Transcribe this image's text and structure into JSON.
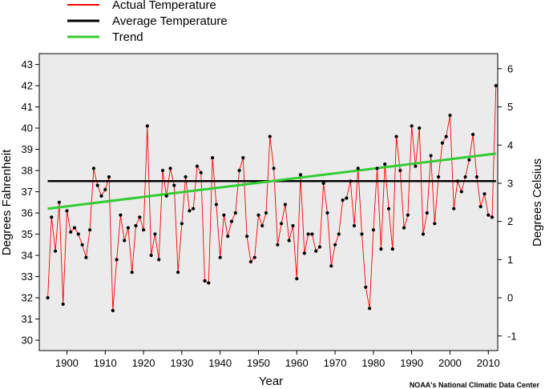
{
  "chart_data": {
    "type": "line",
    "xlabel": "Year",
    "ylabel": "Degrees Fahrenheit",
    "ylabel_right": "Degrees Celsius",
    "credit": "NOAA's National Climatic Data Center",
    "xlim": [
      1893,
      2013
    ],
    "ylim": [
      29.5,
      44
    ],
    "x_ticks": [
      1900,
      1910,
      1920,
      1930,
      1940,
      1950,
      1960,
      1970,
      1980,
      1990,
      2000,
      2010
    ],
    "y_ticks": [
      30,
      31,
      32,
      33,
      34,
      35,
      36,
      37,
      38,
      39,
      40,
      41,
      42,
      43
    ],
    "y_ticks_right": [
      -1,
      0,
      1,
      2,
      3,
      4,
      5,
      6
    ],
    "grid": false,
    "legend_position": "top-left",
    "plot_background": "#ebebeb",
    "series": [
      {
        "name": "Actual Temperature",
        "color": "#ff0000",
        "x": [
          1895,
          1896,
          1897,
          1898,
          1899,
          1900,
          1901,
          1902,
          1903,
          1904,
          1905,
          1906,
          1907,
          1908,
          1909,
          1910,
          1911,
          1912,
          1913,
          1914,
          1915,
          1916,
          1917,
          1918,
          1919,
          1920,
          1921,
          1922,
          1923,
          1924,
          1925,
          1926,
          1927,
          1928,
          1929,
          1930,
          1931,
          1932,
          1933,
          1934,
          1935,
          1936,
          1937,
          1938,
          1939,
          1940,
          1941,
          1942,
          1943,
          1944,
          1945,
          1946,
          1947,
          1948,
          1949,
          1950,
          1951,
          1952,
          1953,
          1954,
          1955,
          1956,
          1957,
          1958,
          1959,
          1960,
          1961,
          1962,
          1963,
          1964,
          1965,
          1966,
          1967,
          1968,
          1969,
          1970,
          1971,
          1972,
          1973,
          1974,
          1975,
          1976,
          1977,
          1978,
          1979,
          1980,
          1981,
          1982,
          1983,
          1984,
          1985,
          1986,
          1987,
          1988,
          1989,
          1990,
          1991,
          1992,
          1993,
          1994,
          1995,
          1996,
          1997,
          1998,
          1999,
          2000,
          2001,
          2002,
          2003,
          2004,
          2005,
          2006,
          2007,
          2008,
          2009,
          2010,
          2011,
          2012
        ],
        "values": [
          32.0,
          35.8,
          34.2,
          36.5,
          31.7,
          36.1,
          35.1,
          35.3,
          35.0,
          34.5,
          33.9,
          35.2,
          38.1,
          37.3,
          36.8,
          37.1,
          37.7,
          31.4,
          33.8,
          35.9,
          34.7,
          35.3,
          33.2,
          35.4,
          35.8,
          35.2,
          40.1,
          34.0,
          35.0,
          33.8,
          38.0,
          36.8,
          38.1,
          37.3,
          33.2,
          35.5,
          37.7,
          36.1,
          36.2,
          38.2,
          37.9,
          32.8,
          32.7,
          38.6,
          36.4,
          33.9,
          35.9,
          34.9,
          35.6,
          36.0,
          38.0,
          38.6,
          34.9,
          33.7,
          33.9,
          35.9,
          35.4,
          36.0,
          39.6,
          38.1,
          34.5,
          35.5,
          36.4,
          34.7,
          35.4,
          32.9,
          37.8,
          34.1,
          35.0,
          35.0,
          34.2,
          34.4,
          37.4,
          36.0,
          33.5,
          34.5,
          35.0,
          36.6,
          36.7,
          37.5,
          35.4,
          38.1,
          35.0,
          32.5,
          31.5,
          35.2,
          38.1,
          34.3,
          38.3,
          36.2,
          34.3,
          39.6,
          38.0,
          35.3,
          35.9,
          40.1,
          38.2,
          40.0,
          35.0,
          36.0,
          38.7,
          35.5,
          37.7,
          39.3,
          39.6,
          40.6,
          36.2,
          37.5,
          37.0,
          37.7,
          38.5,
          39.7,
          37.7,
          36.3,
          36.9,
          35.9,
          35.8,
          42.0
        ]
      },
      {
        "name": "Average Temperature",
        "color": "#000000",
        "x": [
          1895,
          2012
        ],
        "values": [
          37.5,
          37.5
        ]
      },
      {
        "name": "Trend",
        "color": "#33cc33",
        "x": [
          1895,
          2012
        ],
        "values": [
          36.2,
          38.8
        ]
      }
    ]
  }
}
